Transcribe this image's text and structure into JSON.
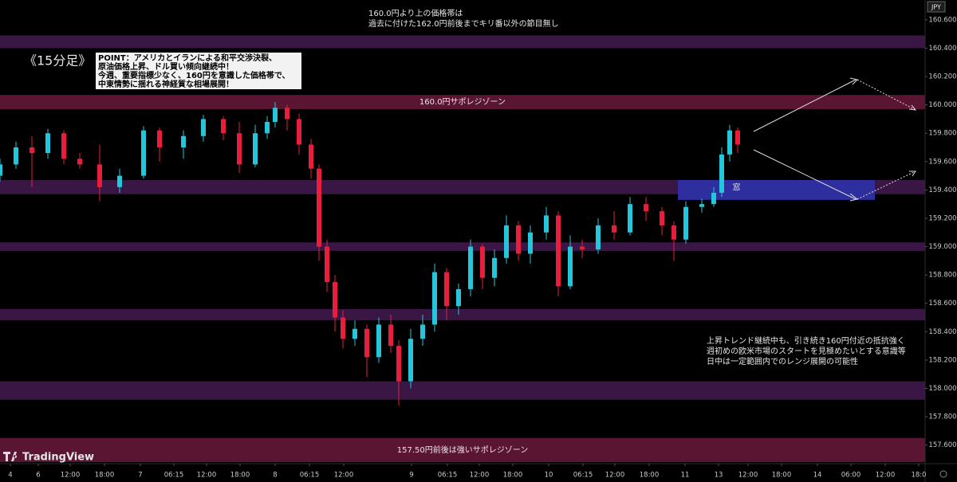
{
  "chart_data": {
    "type": "candlestick",
    "timeframe": "《15分足》",
    "currency": "JPY",
    "watermark": "TradingView",
    "up_color": "#26c6da",
    "down_color": "#e91e3c",
    "grid": false,
    "notes": {
      "top": [
        "160.0円より上の価格帯は",
        "過去に付けた162.0円前後までキリ番以外の節目無し"
      ],
      "point": [
        "POINT：アメリカとイランによる和平交渉決裂、",
        "原油価格上昇、ドル買い傾向継続中！",
        "今週、重要指標少なく、160円を意識した価格帯で、",
        "中東情勢に揺れる神経質な相場展開！"
      ],
      "right": [
        "上昇トレンド継続中も、引き続き160円付近の抵抗強く",
        "週初めの欧米市場のスタートを見極めたいとする意識等",
        "日中は一定範囲内でのレンジ展開の可能性"
      ]
    },
    "zones": [
      {
        "low": 160.4,
        "high": 160.49,
        "color": "#3a1645"
      },
      {
        "low": 159.97,
        "high": 160.07,
        "color": "#5a1533",
        "label": "160.0円サポレジゾーン"
      },
      {
        "low": 159.37,
        "high": 159.47,
        "color": "#3a1645"
      },
      {
        "low": 158.97,
        "high": 159.03,
        "color": "#3a1645"
      },
      {
        "low": 158.48,
        "high": 158.56,
        "color": "#3a1645"
      },
      {
        "low": 157.92,
        "high": 158.05,
        "color": "#3a1645"
      },
      {
        "low": 157.48,
        "high": 157.65,
        "color": "#5a1533",
        "label": "157.50円前後は強いサポレジゾーン"
      }
    ],
    "gap_box": {
      "low": 159.33,
      "high": 159.47,
      "x": [
        170,
        219.4
      ],
      "color": "#2e2e9e",
      "label": "窓"
    },
    "candles": {
      "x": [
        0,
        4,
        8,
        12,
        16,
        20,
        25,
        30,
        36,
        40,
        46,
        51,
        56,
        60,
        64,
        67,
        69,
        72,
        75,
        78,
        80,
        82,
        84,
        86,
        89,
        92,
        95,
        98,
        100,
        103,
        106,
        109,
        112,
        115,
        118,
        121,
        124,
        127,
        130,
        133,
        137,
        140,
        143,
        146,
        150,
        154,
        158,
        162,
        166,
        169,
        172,
        176,
        179,
        181,
        183,
        185
      ],
      "open": [
        159.5,
        159.58,
        159.7,
        159.66,
        159.8,
        159.62,
        159.58,
        159.42,
        159.5,
        159.82,
        159.7,
        159.78,
        159.9,
        159.8,
        159.58,
        159.8,
        159.88,
        159.98,
        159.9,
        159.72,
        159.55,
        159.0,
        158.75,
        158.5,
        158.35,
        158.42,
        158.22,
        158.45,
        158.3,
        158.05,
        158.35,
        158.45,
        158.82,
        158.58,
        158.7,
        159.0,
        158.78,
        158.92,
        159.15,
        158.95,
        159.1,
        159.22,
        158.72,
        159.0,
        158.98,
        159.15,
        159.1,
        159.3,
        159.25,
        159.15,
        159.05,
        159.28,
        159.3,
        159.38,
        159.65,
        159.82
      ],
      "high": [
        159.62,
        159.74,
        159.78,
        159.83,
        159.82,
        159.66,
        159.72,
        159.55,
        159.85,
        159.84,
        159.82,
        159.93,
        159.92,
        159.88,
        159.86,
        159.92,
        160.02,
        160.0,
        159.94,
        159.76,
        159.58,
        159.05,
        158.8,
        158.55,
        158.48,
        158.45,
        158.5,
        158.52,
        158.34,
        158.42,
        158.52,
        158.88,
        158.85,
        158.74,
        159.05,
        159.02,
        158.98,
        159.22,
        159.18,
        159.15,
        159.28,
        159.25,
        159.08,
        159.05,
        159.2,
        159.25,
        159.35,
        159.35,
        159.28,
        159.18,
        159.32,
        159.34,
        159.42,
        159.7,
        159.86,
        159.84
      ],
      "low": [
        159.46,
        159.55,
        159.42,
        159.62,
        159.58,
        159.55,
        159.32,
        159.38,
        159.48,
        159.6,
        159.62,
        159.74,
        159.75,
        159.52,
        159.56,
        159.76,
        159.84,
        159.82,
        159.65,
        159.48,
        158.9,
        158.68,
        158.4,
        158.28,
        158.3,
        158.08,
        158.18,
        158.25,
        157.88,
        158.0,
        158.3,
        158.4,
        158.48,
        158.52,
        158.65,
        158.7,
        158.72,
        158.88,
        158.9,
        158.88,
        159.05,
        158.65,
        158.7,
        158.92,
        158.95,
        159.05,
        159.08,
        159.18,
        159.08,
        158.9,
        159.02,
        159.24,
        159.28,
        159.35,
        159.6,
        159.66
      ],
      "close": [
        159.58,
        159.7,
        159.66,
        159.8,
        159.62,
        159.58,
        159.42,
        159.5,
        159.82,
        159.7,
        159.78,
        159.9,
        159.8,
        159.58,
        159.8,
        159.88,
        159.98,
        159.9,
        159.72,
        159.55,
        159.0,
        158.75,
        158.5,
        158.35,
        158.42,
        158.22,
        158.45,
        158.3,
        158.05,
        158.35,
        158.45,
        158.82,
        158.58,
        158.7,
        159.0,
        158.78,
        158.92,
        159.15,
        158.95,
        159.1,
        159.22,
        158.72,
        159.0,
        158.98,
        159.15,
        159.1,
        159.3,
        159.25,
        159.15,
        159.05,
        159.28,
        159.3,
        159.38,
        159.65,
        159.82,
        159.72
      ]
    },
    "xlim": [
      0,
      232
    ],
    "xticks": [
      {
        "value": 2.6,
        "label": "4"
      },
      {
        "value": 9.6,
        "label": "6"
      },
      {
        "value": 17.6,
        "label": "12:00"
      },
      {
        "value": 26.2,
        "label": "18:00"
      },
      {
        "value": 35.2,
        "label": "7"
      },
      {
        "value": 43.6,
        "label": "06:15"
      },
      {
        "value": 51.8,
        "label": "12:00"
      },
      {
        "value": 60.2,
        "label": "18:00"
      },
      {
        "value": 69,
        "label": "8"
      },
      {
        "value": 77.6,
        "label": "06:15"
      },
      {
        "value": 86.2,
        "label": "12:00"
      },
      {
        "value": 103.2,
        "label": "9"
      },
      {
        "value": 112.2,
        "label": "06:15"
      },
      {
        "value": 120.2,
        "label": "12:00"
      },
      {
        "value": 128.6,
        "label": "18:00"
      },
      {
        "value": 137.6,
        "label": "10"
      },
      {
        "value": 146.2,
        "label": "06:15"
      },
      {
        "value": 154.2,
        "label": "12:00"
      },
      {
        "value": 162.8,
        "label": "18:00"
      },
      {
        "value": 171.8,
        "label": "11"
      },
      {
        "value": 180.2,
        "label": "13"
      },
      {
        "value": 187.6,
        "label": "12:00"
      },
      {
        "value": 196,
        "label": "18:00"
      },
      {
        "value": 205,
        "label": "14"
      },
      {
        "value": 213.4,
        "label": "06:00"
      },
      {
        "value": 222,
        "label": "12:00"
      },
      {
        "value": 230.4,
        "label": "18:0"
      }
    ],
    "ylim": [
      157.48,
      160.74
    ],
    "yticks": [
      {
        "value": 160.6,
        "label": "160.600"
      },
      {
        "value": 160.4,
        "label": "160.400"
      },
      {
        "value": 160.2,
        "label": "160.200"
      },
      {
        "value": 160.0,
        "label": "160.000"
      },
      {
        "value": 159.8,
        "label": "159.800"
      },
      {
        "value": 159.6,
        "label": "159.600"
      },
      {
        "value": 159.4,
        "label": "159.400"
      },
      {
        "value": 159.2,
        "label": "159.200"
      },
      {
        "value": 159.0,
        "label": "159.000"
      },
      {
        "value": 158.8,
        "label": "158.800"
      },
      {
        "value": 158.6,
        "label": "158.600"
      },
      {
        "value": 158.4,
        "label": "158.400"
      },
      {
        "value": 158.2,
        "label": "158.200"
      },
      {
        "value": 158.0,
        "label": "158.000"
      },
      {
        "value": 157.8,
        "label": "157.800"
      },
      {
        "value": 157.6,
        "label": "157.600"
      }
    ]
  }
}
